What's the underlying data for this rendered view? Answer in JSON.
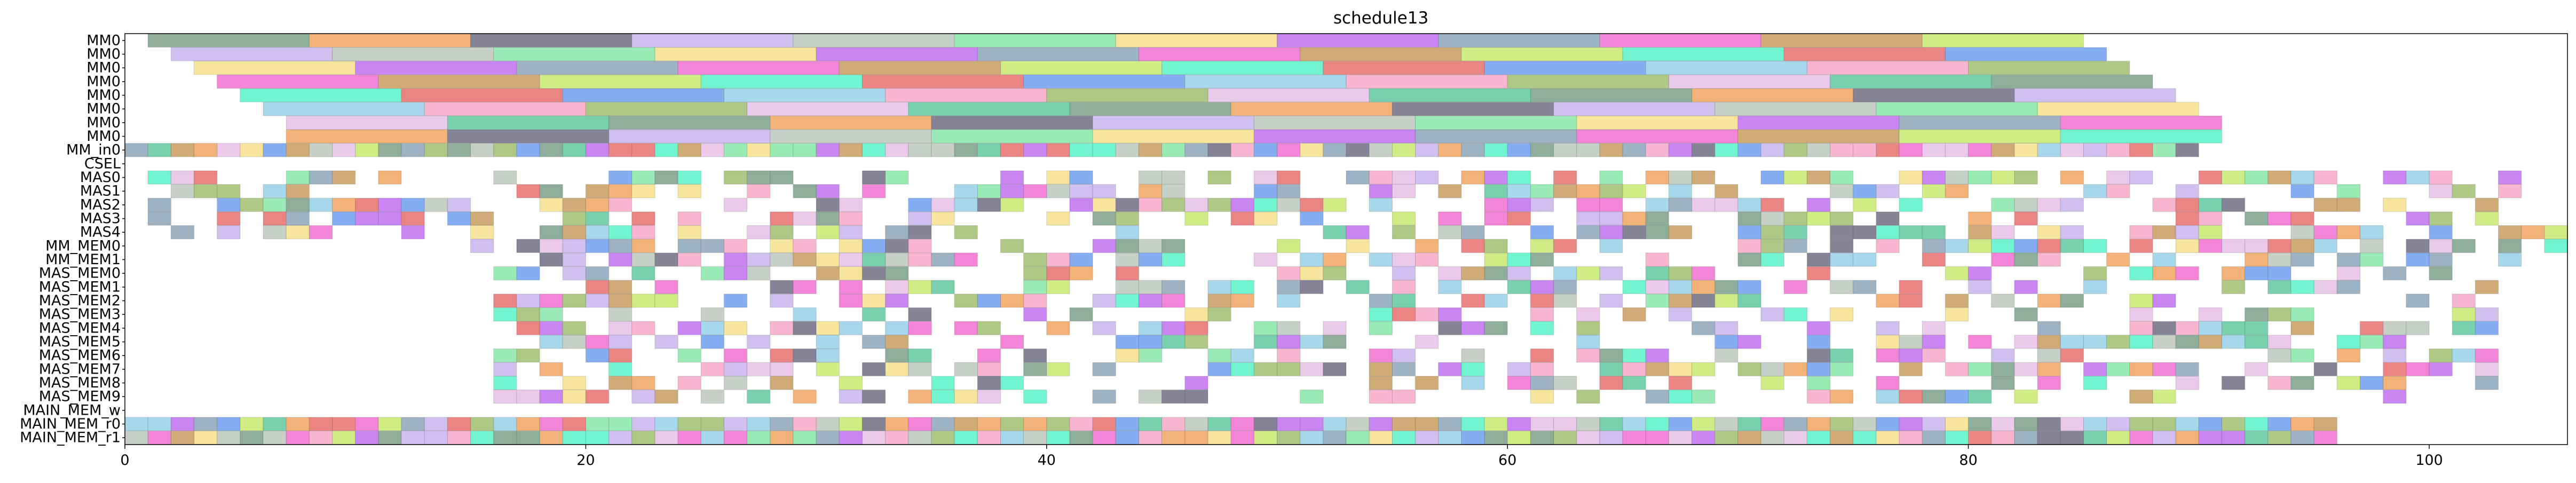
{
  "chart_data": {
    "type": "gantt",
    "title": "schedule13",
    "xlabel": "",
    "ylabel": "",
    "xlim": [
      0,
      106
    ],
    "x_ticks": [
      0,
      20,
      40,
      60,
      80,
      100
    ],
    "x_tick_labels": [
      "0",
      "20",
      "40",
      "60",
      "80",
      "100"
    ],
    "grid": false,
    "legend": "none",
    "rows": [
      "MM0",
      "MM0",
      "MM0",
      "MM0",
      "MM0",
      "MM0",
      "MM0",
      "MM0",
      "MM_in0",
      "CSEL",
      "MAS0",
      "MAS1",
      "MAS2",
      "MAS3",
      "MAS4",
      "MM_MEM0",
      "MM_MEM1",
      "MAS_MEM0",
      "MAS_MEM1",
      "MAS_MEM2",
      "MAS_MEM3",
      "MAS_MEM4",
      "MAS_MEM5",
      "MAS_MEM6",
      "MAS_MEM7",
      "MAS_MEM8",
      "MAS_MEM9",
      "MAIN_MEM_w",
      "MAIN_MEM_r0",
      "MAIN_MEM_r1"
    ],
    "palette": [
      "#7aa08a",
      "#f0a560",
      "#6e6e84",
      "#c8b4ec",
      "#bcc8bc",
      "#88e6a8",
      "#f6e08c",
      "#c070f0",
      "#8ca4b8",
      "#f070d0",
      "#c89c60",
      "#c8ea70",
      "#5af2c8",
      "#e8706e",
      "#70a0f0",
      "#98d0e8",
      "#f6a8c8",
      "#a0c070",
      "#e8c0e8",
      "#60c8a0"
    ],
    "mm_rows": [
      {
        "row": 0,
        "start": 1.0,
        "duration": 7.0,
        "count": 12
      },
      {
        "row": 1,
        "start": 2.0,
        "duration": 7.0,
        "count": 12
      },
      {
        "row": 2,
        "start": 3.0,
        "duration": 7.0,
        "count": 12
      },
      {
        "row": 3,
        "start": 4.0,
        "duration": 7.0,
        "count": 12
      },
      {
        "row": 4,
        "start": 5.0,
        "duration": 7.0,
        "count": 12
      },
      {
        "row": 5,
        "start": 6.0,
        "duration": 7.0,
        "count": 12
      },
      {
        "row": 6,
        "start": 7.0,
        "duration": 7.0,
        "count": 12
      },
      {
        "row": 7,
        "start": 7.0,
        "duration": 7.0,
        "count": 12
      }
    ],
    "small_rows": [
      {
        "row": 8,
        "start": 0,
        "end": 90,
        "density": 1.0
      },
      {
        "row": 10,
        "start": 1,
        "end": 104,
        "density": 0.55
      },
      {
        "row": 11,
        "start": 1,
        "end": 104,
        "density": 0.55
      },
      {
        "row": 12,
        "start": 1,
        "end": 104,
        "density": 0.55
      },
      {
        "row": 13,
        "start": 1,
        "end": 104,
        "density": 0.55
      },
      {
        "row": 14,
        "start": 1,
        "end": 106,
        "density": 0.55
      },
      {
        "row": 15,
        "start": 15,
        "end": 106,
        "density": 0.6
      },
      {
        "row": 16,
        "start": 15,
        "end": 106,
        "density": 0.6
      },
      {
        "row": 17,
        "start": 16,
        "end": 103,
        "density": 0.5
      },
      {
        "row": 18,
        "start": 16,
        "end": 103,
        "density": 0.5
      },
      {
        "row": 19,
        "start": 16,
        "end": 103,
        "density": 0.5
      },
      {
        "row": 20,
        "start": 15,
        "end": 103,
        "density": 0.5
      },
      {
        "row": 21,
        "start": 16,
        "end": 103,
        "density": 0.5
      },
      {
        "row": 22,
        "start": 16,
        "end": 103,
        "density": 0.5
      },
      {
        "row": 23,
        "start": 16,
        "end": 103,
        "density": 0.5
      },
      {
        "row": 24,
        "start": 16,
        "end": 103,
        "density": 0.5
      },
      {
        "row": 25,
        "start": 15,
        "end": 103,
        "density": 0.5
      },
      {
        "row": 26,
        "start": 16,
        "end": 103,
        "density": 0.5
      },
      {
        "row": 28,
        "start": 0,
        "end": 96,
        "density": 1.0
      },
      {
        "row": 29,
        "start": 0,
        "end": 96,
        "density": 1.0
      }
    ]
  }
}
